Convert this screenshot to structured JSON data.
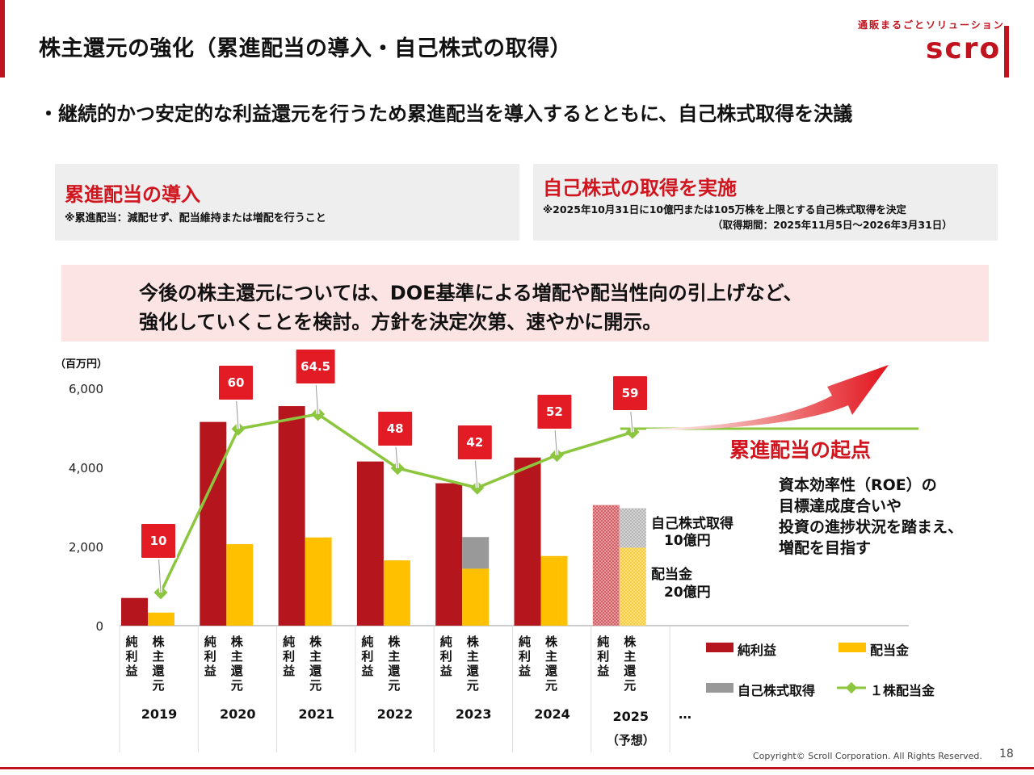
{
  "header": {
    "title": "株主還元の強化（累進配当の導入・自己株式の取得）",
    "brand_tagline": "通販まるごとソリューション",
    "brand_logo": "scro"
  },
  "bullet": "・継続的かつ安定的な利益還元を行うため累進配当を導入するとともに、自己株式取得を決議",
  "box_left": {
    "title": "累進配当の導入",
    "note": "※累進配当：減配せず、配当維持または増配を行うこと"
  },
  "box_right": {
    "title": "自己株式の取得を実施",
    "note1": "※2025年10月31日に10億円または105万株を上限とする自己株式取得を決定",
    "note2": "（取得期間：2025年11月5日～2026年3月31日）"
  },
  "policy": {
    "line1": "今後の株主還元については、DOE基準による増配や配当性向の引上げなど、",
    "line2": "強化していくことを検討。方針を決定次第、速やかに開示。"
  },
  "annotations": {
    "buyback_label": "自己株式取得",
    "buyback_amount": "10億円",
    "dividend_label": "配当金",
    "dividend_amount": "20億円",
    "cumulative_start": "累進配当の起点",
    "roe_lines": [
      "資本効率性（ROE）の",
      "目標達成度合いや",
      "投資の進捗状況を踏まえ、",
      "増配を目指す"
    ]
  },
  "chart_data": {
    "type": "bar",
    "unit_label": "（百万円）",
    "ylim": [
      0,
      6000
    ],
    "yticks": [
      "0",
      "2,000",
      "4,000",
      "6,000"
    ],
    "categories": [
      "2019",
      "2020",
      "2021",
      "2022",
      "2023",
      "2024",
      "2025"
    ],
    "category_notes": [
      "",
      "",
      "",
      "",
      "",
      "",
      "（予想）"
    ],
    "continuation": "…",
    "bar_labels": [
      "純\n利\n益",
      "株\n主\n還\n元"
    ],
    "series": [
      {
        "name": "純利益",
        "color": "#b5161d",
        "values": [
          700,
          5150,
          5550,
          4150,
          3600,
          4250,
          3050
        ]
      },
      {
        "name": "配当金",
        "color": "#ffc000",
        "values": [
          330,
          2060,
          2230,
          1650,
          1440,
          1760,
          1970
        ]
      },
      {
        "name": "自己株式取得",
        "color": "#999999",
        "values": [
          0,
          0,
          0,
          0,
          800,
          0,
          1000
        ]
      }
    ],
    "forecast_index": 6,
    "dps": {
      "name": "１株配当金",
      "color": "#8cc63f",
      "values": [
        10,
        60,
        64.5,
        48,
        42,
        52,
        59
      ],
      "labels": [
        "10",
        "60",
        "64.5",
        "48",
        "42",
        "52",
        "59"
      ]
    },
    "legend": [
      "純利益",
      "配当金",
      "自己株式取得",
      "１株配当金"
    ]
  },
  "footer": {
    "copyright": "Copyright© Scroll Corporation. All Rights Reserved.",
    "page": "18"
  }
}
